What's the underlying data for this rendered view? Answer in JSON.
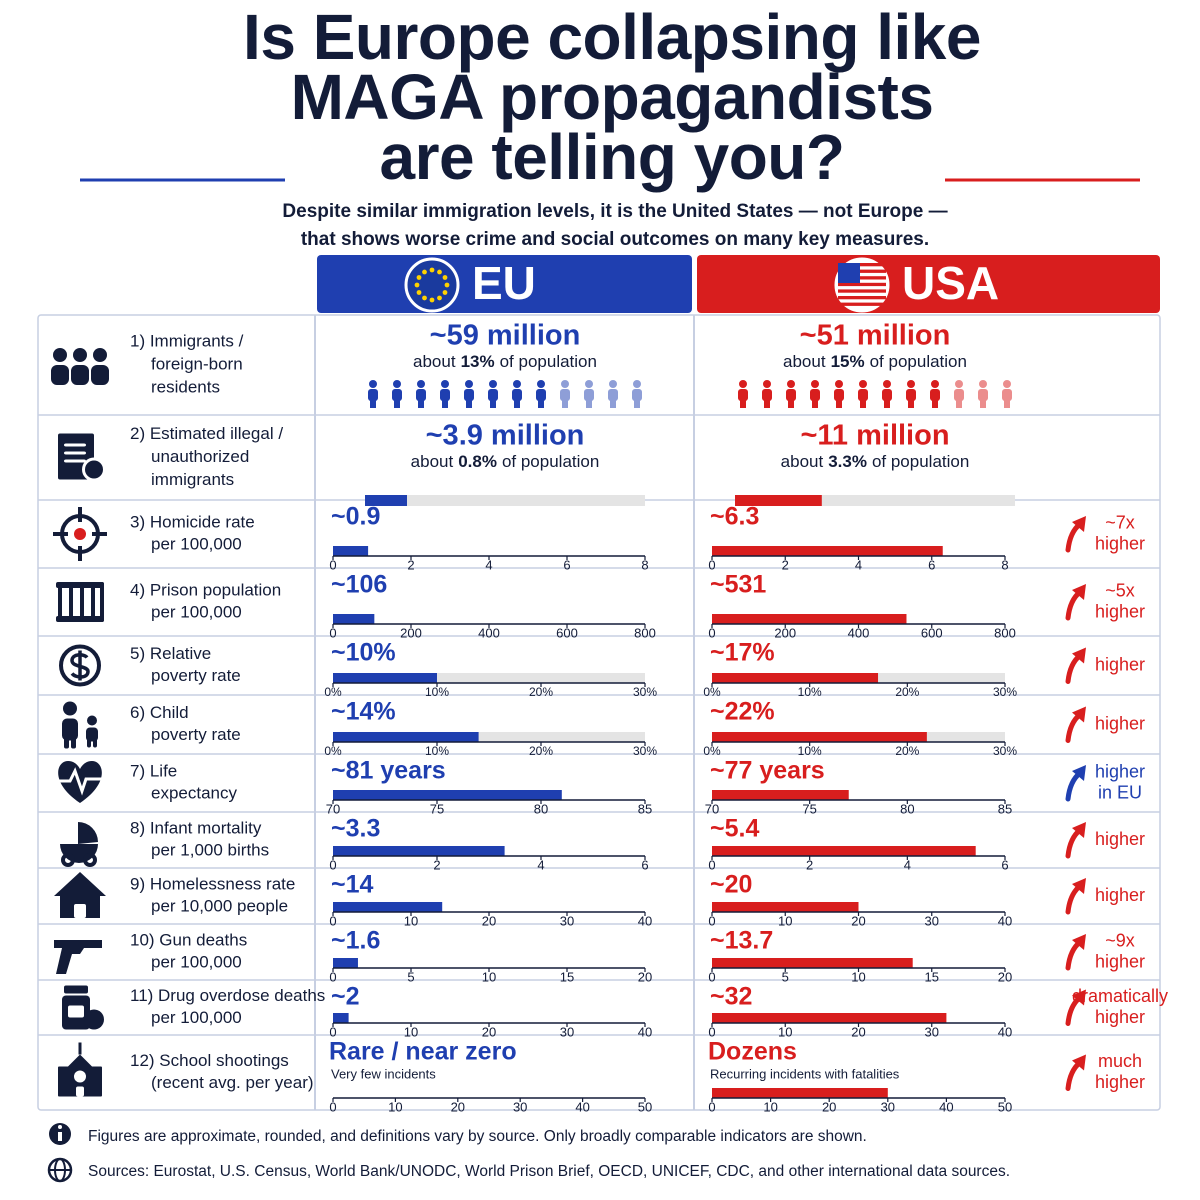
{
  "header": {
    "title": [
      "Is Europe collapsing like",
      "MAGA propagandists",
      "are telling you?"
    ],
    "subtitle": [
      "Despite similar immigration levels, it is the United States — not Europe —",
      "that shows worse crime and social outcomes on many key measures."
    ]
  },
  "columns": {
    "eu": "EU",
    "usa": "USA"
  },
  "colors": {
    "eu": "#1f3fb0",
    "usa": "#d81e1e",
    "track": "#e4e4e4",
    "ink": "#131c38"
  },
  "rows": [
    {
      "label": [
        "1) Immigrants /",
        "foreign-born",
        "residents"
      ],
      "eu": {
        "headline": "~59 million",
        "note": {
          "before": "about",
          "bold": "13%",
          "after": "of population"
        },
        "icons": {
          "filled": 8,
          "total": 12
        }
      },
      "usa": {
        "headline": "~51 million",
        "note": {
          "before": "about",
          "bold": "15%",
          "after": "of population"
        },
        "icons": {
          "filled": 9,
          "total": 12
        }
      }
    },
    {
      "label": [
        "2) Estimated illegal /",
        "unauthorized",
        "immigrants"
      ],
      "eu": {
        "headline": "~3.9 million",
        "note": {
          "before": "about",
          "bold": "0.8%",
          "after": "of population"
        },
        "share_bar": {
          "value": 15,
          "lim": [
            0,
            100
          ]
        }
      },
      "usa": {
        "headline": "~11 million",
        "note": {
          "before": "about",
          "bold": "3.3%",
          "after": "of population"
        },
        "share_bar": {
          "value": 31,
          "lim": [
            0,
            100
          ]
        }
      }
    },
    {
      "label": [
        "3) Homicide rate",
        "per 100,000"
      ],
      "eu": {
        "value": 0.9,
        "value_label": "~0.9",
        "xlim": [
          0,
          8
        ],
        "xticks": [
          0,
          2,
          4,
          6,
          8
        ]
      },
      "usa": {
        "value": 6.3,
        "value_label": "~6.3",
        "xlim": [
          0,
          8
        ],
        "xticks": [
          0,
          2,
          4,
          6,
          8
        ]
      },
      "compare": {
        "text": [
          "~7x",
          "higher"
        ],
        "color": "#d81e1e"
      }
    },
    {
      "label": [
        "4) Prison population",
        "per 100,000"
      ],
      "eu": {
        "value": 106,
        "value_label": "~106",
        "xlim": [
          0,
          800
        ],
        "xticks": [
          0,
          200,
          400,
          600,
          800
        ]
      },
      "usa": {
        "value": 531,
        "value_label": "~531",
        "xlim": [
          0,
          800
        ],
        "xticks": [
          0,
          200,
          400,
          600,
          800
        ]
      },
      "compare": {
        "text": [
          "~5x",
          "higher"
        ],
        "color": "#d81e1e"
      }
    },
    {
      "label": [
        "5) Relative",
        "poverty rate"
      ],
      "track": true,
      "eu": {
        "value": 10,
        "value_label": "~10%",
        "xlim": [
          0,
          30
        ],
        "xticks": [
          {
            "value": 0,
            "label": "0%"
          },
          {
            "value": 10,
            "label": "10%"
          },
          {
            "value": 20,
            "label": "20%"
          },
          {
            "value": 30,
            "label": "30%"
          }
        ]
      },
      "usa": {
        "value": 17,
        "value_label": "~17%",
        "xlim": [
          0,
          30
        ],
        "xticks": [
          {
            "value": 0,
            "label": "0%"
          },
          {
            "value": 10,
            "label": "10%"
          },
          {
            "value": 20,
            "label": "20%"
          },
          {
            "value": 30,
            "label": "30%"
          }
        ]
      },
      "compare": {
        "text": [
          "higher"
        ],
        "color": "#d81e1e"
      }
    },
    {
      "label": [
        "6) Child",
        "poverty rate"
      ],
      "track": true,
      "eu": {
        "value": 14,
        "value_label": "~14%",
        "xlim": [
          0,
          30
        ],
        "xticks": [
          {
            "value": 0,
            "label": "0%"
          },
          {
            "value": 10,
            "label": "10%"
          },
          {
            "value": 20,
            "label": "20%"
          },
          {
            "value": 30,
            "label": "30%"
          }
        ]
      },
      "usa": {
        "value": 22,
        "value_label": "~22%",
        "xlim": [
          0,
          30
        ],
        "xticks": [
          {
            "value": 0,
            "label": "0%"
          },
          {
            "value": 10,
            "label": "10%"
          },
          {
            "value": 20,
            "label": "20%"
          },
          {
            "value": 30,
            "label": "30%"
          }
        ]
      },
      "compare": {
        "text": [
          "higher"
        ],
        "color": "#d81e1e"
      }
    },
    {
      "label": [
        "7) Life",
        "expectancy"
      ],
      "eu": {
        "value": 81,
        "value_label": "~81 years",
        "xlim": [
          70,
          85
        ],
        "xticks": [
          70,
          75,
          80,
          85
        ]
      },
      "usa": {
        "value": 77,
        "value_label": "~77 years",
        "xlim": [
          70,
          85
        ],
        "xticks": [
          70,
          75,
          80,
          85
        ]
      },
      "compare": {
        "text": [
          "higher",
          "in EU"
        ],
        "color": "#1f3fb0"
      }
    },
    {
      "label": [
        "8) Infant mortality",
        "per 1,000 births"
      ],
      "eu": {
        "value": 3.3,
        "value_label": "~3.3",
        "xlim": [
          0,
          6
        ],
        "xticks": [
          0,
          2,
          4,
          6
        ]
      },
      "usa": {
        "value": 5.4,
        "value_label": "~5.4",
        "xlim": [
          0,
          6
        ],
        "xticks": [
          0,
          2,
          4,
          6
        ]
      },
      "compare": {
        "text": [
          "higher"
        ],
        "color": "#d81e1e"
      }
    },
    {
      "label": [
        "9) Homelessness rate",
        "per 10,000 people"
      ],
      "eu": {
        "value": 14,
        "value_label": "~14",
        "xlim": [
          0,
          40
        ],
        "xticks": [
          0,
          10,
          20,
          30,
          40
        ]
      },
      "usa": {
        "value": 20,
        "value_label": "~20",
        "xlim": [
          0,
          40
        ],
        "xticks": [
          0,
          10,
          20,
          30,
          40
        ]
      },
      "compare": {
        "text": [
          "higher"
        ],
        "color": "#d81e1e"
      }
    },
    {
      "label": [
        "10) Gun deaths",
        "per 100,000"
      ],
      "eu": {
        "value": 1.6,
        "value_label": "~1.6",
        "xlim": [
          0,
          20
        ],
        "xticks": [
          0,
          5,
          10,
          15,
          20
        ]
      },
      "usa": {
        "value": 13.7,
        "value_label": "~13.7",
        "xlim": [
          0,
          20
        ],
        "xticks": [
          0,
          5,
          10,
          15,
          20
        ]
      },
      "compare": {
        "text": [
          "~9x",
          "higher"
        ],
        "color": "#d81e1e"
      }
    },
    {
      "label": [
        "11) Drug overdose deaths",
        "per 100,000"
      ],
      "eu": {
        "value": 2,
        "value_label": "~2",
        "xlim": [
          0,
          40
        ],
        "xticks": [
          0,
          10,
          20,
          30,
          40
        ]
      },
      "usa": {
        "value": 32,
        "value_label": "~32",
        "xlim": [
          0,
          40
        ],
        "xticks": [
          0,
          10,
          20,
          30,
          40
        ]
      },
      "compare": {
        "text": [
          "dramatically",
          "higher"
        ],
        "color": "#d81e1e"
      }
    },
    {
      "label": [
        "12) School shootings",
        "(recent avg. per year)"
      ],
      "eu": {
        "headline": "Rare / near zero",
        "caption": "Very few incidents",
        "xlim": [
          0,
          50
        ],
        "xticks": [
          0,
          10,
          20,
          30,
          40,
          50
        ]
      },
      "usa": {
        "headline": "Dozens",
        "caption": "Recurring incidents with fatalities",
        "value": 30,
        "xlim": [
          0,
          50
        ],
        "xticks": [
          0,
          10,
          20,
          30,
          40,
          50
        ]
      },
      "compare": {
        "text": [
          "much",
          "higher"
        ],
        "color": "#d81e1e"
      }
    }
  ],
  "footer": {
    "note": "Figures are approximate, rounded, and definitions vary by source. Only broadly comparable indicators are shown.",
    "sources": "Sources: Eurostat, U.S. Census, World Bank/UNODC, World Prison Brief, OECD, UNICEF, CDC, and other international data sources."
  }
}
